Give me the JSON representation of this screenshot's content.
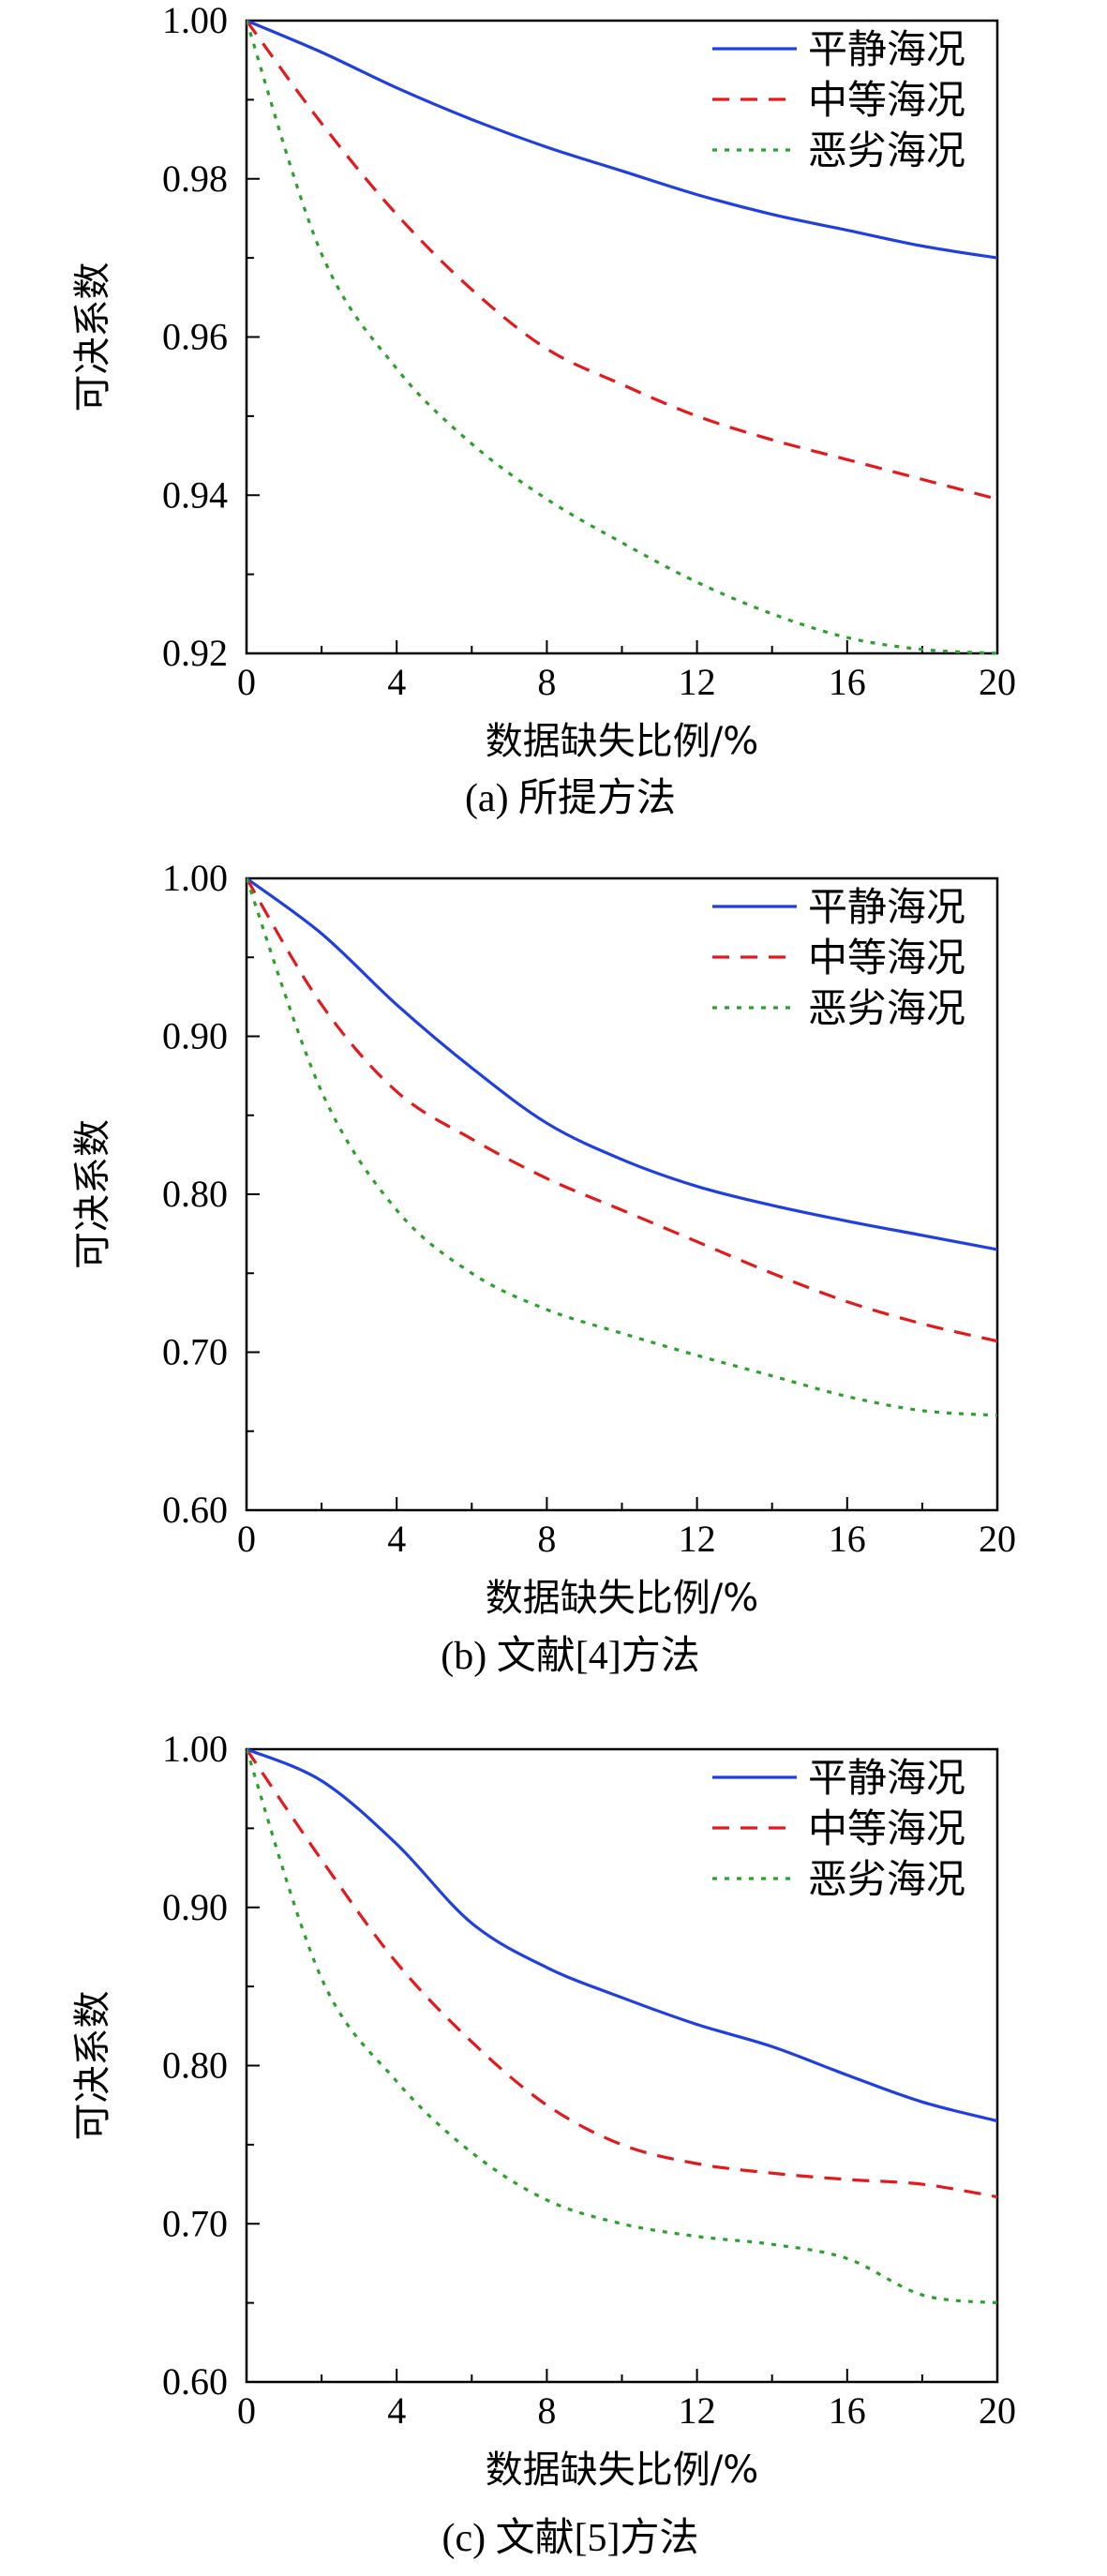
{
  "figure": {
    "panel_a": {
      "caption": "(a) 所提方法"
    },
    "panel_b": {
      "caption": "(b) 文献[4]方法"
    },
    "panel_c": {
      "caption": "(c) 文献[5]方法"
    }
  },
  "chart_data": [
    {
      "type": "line",
      "title": "(a) 所提方法",
      "xlabel": "数据缺失比例/%",
      "ylabel": "可决系数",
      "xlim": [
        0,
        20
      ],
      "ylim": [
        0.92,
        1.0
      ],
      "xticks": [
        0,
        4,
        8,
        12,
        16,
        20
      ],
      "xtick_labels": [
        "0",
        "4",
        "8",
        "12",
        "16",
        "20"
      ],
      "yticks": [
        0.92,
        0.94,
        0.96,
        0.98,
        1.0
      ],
      "ytick_labels": [
        "0.92",
        "0.94",
        "0.96",
        "0.98",
        "1.00"
      ],
      "legend_position": "top-right",
      "grid": false,
      "series": [
        {
          "name": "平静海况",
          "color": "#1f3fe0",
          "dash": "solid",
          "x": [
            0,
            2,
            4,
            6,
            8,
            10,
            12,
            14,
            16,
            18,
            20
          ],
          "y": [
            1.0,
            0.996,
            0.9915,
            0.9875,
            0.984,
            0.981,
            0.978,
            0.9755,
            0.9735,
            0.9715,
            0.97
          ]
        },
        {
          "name": "中等海况",
          "color": "#e31a1c",
          "dash": "dashed",
          "x": [
            0,
            2,
            4,
            6,
            8,
            10,
            12,
            14,
            16,
            18,
            20
          ],
          "y": [
            1.0,
            0.987,
            0.9755,
            0.966,
            0.9585,
            0.954,
            0.95,
            0.947,
            0.9445,
            0.942,
            0.9395
          ]
        },
        {
          "name": "恶劣海况",
          "color": "#2ca02c",
          "dash": "dotted",
          "x": [
            0,
            2,
            4,
            6,
            8,
            10,
            12,
            14,
            16,
            18,
            20
          ],
          "y": [
            1.0,
            0.9705,
            0.956,
            0.9465,
            0.9395,
            0.934,
            0.929,
            0.925,
            0.922,
            0.9205,
            0.92
          ]
        }
      ]
    },
    {
      "type": "line",
      "title": "(b) 文献[4]方法",
      "xlabel": "数据缺失比例/%",
      "ylabel": "可决系数",
      "xlim": [
        0,
        20
      ],
      "ylim": [
        0.6,
        1.0
      ],
      "xticks": [
        0,
        4,
        8,
        12,
        16,
        20
      ],
      "xtick_labels": [
        "0",
        "4",
        "8",
        "12",
        "16",
        "20"
      ],
      "yticks": [
        0.6,
        0.7,
        0.8,
        0.9,
        1.0
      ],
      "ytick_labels": [
        "0.60",
        "0.70",
        "0.80",
        "0.90",
        "1.00"
      ],
      "legend_position": "top-right",
      "grid": false,
      "series": [
        {
          "name": "平静海况",
          "color": "#1f3fe0",
          "dash": "solid",
          "x": [
            0,
            2,
            4,
            6,
            8,
            10,
            12,
            14,
            16,
            18,
            20
          ],
          "y": [
            1.0,
            0.965,
            0.92,
            0.88,
            0.845,
            0.822,
            0.805,
            0.793,
            0.783,
            0.774,
            0.765
          ]
        },
        {
          "name": "中等海况",
          "color": "#e31a1c",
          "dash": "dashed",
          "x": [
            0,
            2,
            4,
            6,
            8,
            10,
            12,
            14,
            16,
            18,
            20
          ],
          "y": [
            1.0,
            0.92,
            0.865,
            0.835,
            0.81,
            0.79,
            0.77,
            0.75,
            0.732,
            0.718,
            0.707
          ]
        },
        {
          "name": "恶劣海况",
          "color": "#2ca02c",
          "dash": "dotted",
          "x": [
            0,
            2,
            4,
            6,
            8,
            10,
            12,
            14,
            16,
            18,
            20
          ],
          "y": [
            1.0,
            0.865,
            0.79,
            0.75,
            0.727,
            0.712,
            0.698,
            0.685,
            0.672,
            0.663,
            0.66
          ]
        }
      ]
    },
    {
      "type": "line",
      "title": "(c) 文献[5]方法",
      "xlabel": "数据缺失比例/%",
      "ylabel": "可决系数",
      "xlim": [
        0,
        20
      ],
      "ylim": [
        0.6,
        1.0
      ],
      "xticks": [
        0,
        4,
        8,
        12,
        16,
        20
      ],
      "xtick_labels": [
        "0",
        "4",
        "8",
        "12",
        "16",
        "20"
      ],
      "yticks": [
        0.6,
        0.7,
        0.8,
        0.9,
        1.0
      ],
      "ytick_labels": [
        "0.60",
        "0.70",
        "0.80",
        "0.90",
        "1.00"
      ],
      "legend_position": "top-right",
      "grid": false,
      "series": [
        {
          "name": "平静海况",
          "color": "#1f3fe0",
          "dash": "solid",
          "x": [
            0,
            2,
            4,
            6,
            8,
            10,
            12,
            14,
            16,
            18,
            20
          ],
          "y": [
            1.0,
            0.98,
            0.94,
            0.89,
            0.862,
            0.843,
            0.826,
            0.812,
            0.794,
            0.777,
            0.765
          ]
        },
        {
          "name": "中等海况",
          "color": "#e31a1c",
          "dash": "dashed",
          "x": [
            0,
            2,
            4,
            6,
            8,
            10,
            12,
            14,
            16,
            18,
            20
          ],
          "y": [
            1.0,
            0.93,
            0.865,
            0.815,
            0.775,
            0.75,
            0.738,
            0.732,
            0.728,
            0.725,
            0.717
          ]
        },
        {
          "name": "恶劣海况",
          "color": "#2ca02c",
          "dash": "dotted",
          "x": [
            0,
            2,
            4,
            6,
            8,
            10,
            12,
            14,
            16,
            18,
            20
          ],
          "y": [
            1.0,
            0.855,
            0.79,
            0.745,
            0.715,
            0.7,
            0.692,
            0.687,
            0.678,
            0.655,
            0.65
          ]
        }
      ]
    }
  ]
}
